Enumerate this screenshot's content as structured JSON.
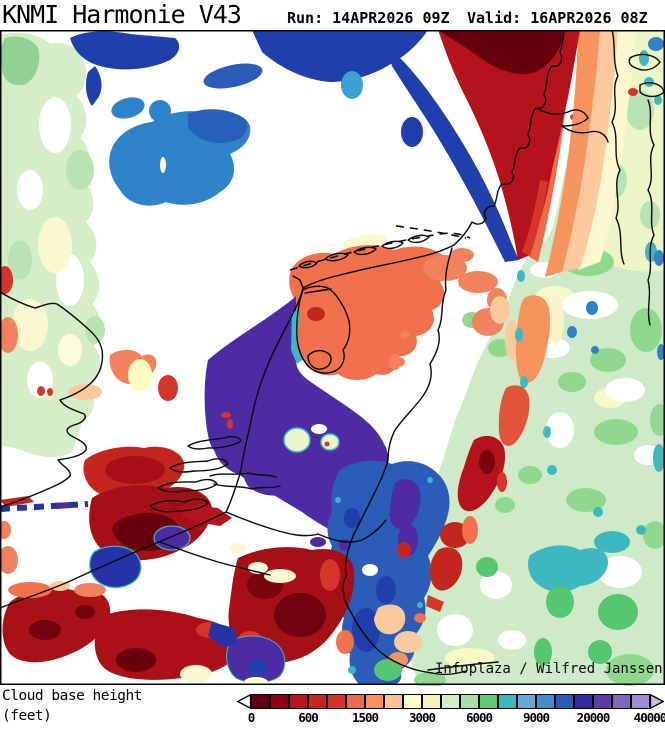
{
  "header": {
    "title": "KNMI Harmonie V43",
    "run": "Run: 14APR2026 09Z",
    "valid": "Valid: 16APR2026 08Z"
  },
  "map": {
    "attribution": "Infoplaza / Wilfred Janssen"
  },
  "legend": {
    "line1": "Cloud base height",
    "line2": "(feet)"
  },
  "colorbar": {
    "labels": [
      "0",
      "600",
      "1500",
      "3000",
      "6000",
      "9000",
      "20000",
      "40000"
    ],
    "colors": [
      "#5e0012",
      "#8e0016",
      "#b8151c",
      "#c62620",
      "#d53227",
      "#ef6a47",
      "#f6925c",
      "#fac28e",
      "#ffffc4",
      "#f1f6b2",
      "#d5edc4",
      "#a6e0a8",
      "#5ecb70",
      "#3cb9c0",
      "#66aad8",
      "#3f8fca",
      "#2b5cb5",
      "#312d9e",
      "#5e3aa8",
      "#7e68c0",
      "#9b8cd4"
    ],
    "left_arrow_color": "#ffffff",
    "right_arrow_color": "#c9c0e8",
    "unit_values_feet": [
      0,
      600,
      1500,
      3000,
      6000,
      9000,
      20000,
      40000
    ]
  }
}
